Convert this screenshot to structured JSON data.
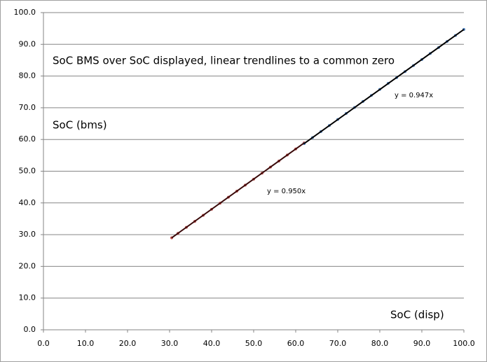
{
  "chart_data": {
    "type": "scatter",
    "title": "SoC BMS over SoC displayed, linear trendlines to a common zero",
    "x_label": "SoC (disp)",
    "y_label": "SoC (bms)",
    "xlim": [
      0,
      100
    ],
    "ylim": [
      0,
      100
    ],
    "xticks": [
      {
        "value": 0,
        "label": "0.0"
      },
      {
        "value": 10,
        "label": "10.0"
      },
      {
        "value": 20,
        "label": "20.0"
      },
      {
        "value": 30,
        "label": "30.0"
      },
      {
        "value": 40,
        "label": "40.0"
      },
      {
        "value": 50,
        "label": "50.0"
      },
      {
        "value": 60,
        "label": "60.0"
      },
      {
        "value": 70,
        "label": "70.0"
      },
      {
        "value": 80,
        "label": "80.0"
      },
      {
        "value": 90,
        "label": "90.0"
      },
      {
        "value": 100,
        "label": "100.0"
      }
    ],
    "yticks": [
      {
        "value": 0,
        "label": "0.0"
      },
      {
        "value": 10,
        "label": "10.0"
      },
      {
        "value": 20,
        "label": "20.0"
      },
      {
        "value": 30,
        "label": "30.0"
      },
      {
        "value": 40,
        "label": "40.0"
      },
      {
        "value": 50,
        "label": "50.0"
      },
      {
        "value": 60,
        "label": "60.0"
      },
      {
        "value": 70,
        "label": "70.0"
      },
      {
        "value": 80,
        "label": "80.0"
      },
      {
        "value": 90,
        "label": "90.0"
      },
      {
        "value": 100,
        "label": "100.0"
      }
    ],
    "grid": true,
    "series": [
      {
        "color": "#c0504d",
        "x": [
          30.5,
          32,
          34,
          36,
          38,
          40,
          42,
          44,
          46,
          48,
          50,
          52,
          54,
          56,
          58,
          60,
          62
        ],
        "values": [
          29.0,
          30.4,
          32.3,
          34.2,
          36.1,
          38.0,
          39.9,
          41.8,
          43.7,
          45.6,
          47.5,
          49.4,
          51.3,
          53.2,
          55.1,
          57.0,
          58.9
        ]
      },
      {
        "color": "#4f81bd",
        "x": [
          62,
          64,
          66,
          68,
          70,
          72,
          74,
          76,
          78,
          80,
          82,
          84,
          86,
          88,
          90,
          92,
          94,
          96,
          98,
          100
        ],
        "values": [
          58.7,
          60.6,
          62.5,
          64.4,
          66.3,
          68.2,
          70.1,
          72.0,
          73.9,
          75.8,
          77.7,
          79.5,
          81.4,
          83.3,
          85.2,
          87.1,
          89.0,
          90.9,
          92.8,
          94.7
        ]
      }
    ],
    "trendlines": [
      {
        "label": "y = 0.950x",
        "color": "#3a0a0a",
        "x": [
          30.5,
          62
        ],
        "values": [
          29.0,
          58.9
        ]
      },
      {
        "label": "y = 0.947x",
        "color": "#000000",
        "x": [
          62,
          100
        ],
        "values": [
          58.7,
          94.7
        ]
      }
    ]
  }
}
